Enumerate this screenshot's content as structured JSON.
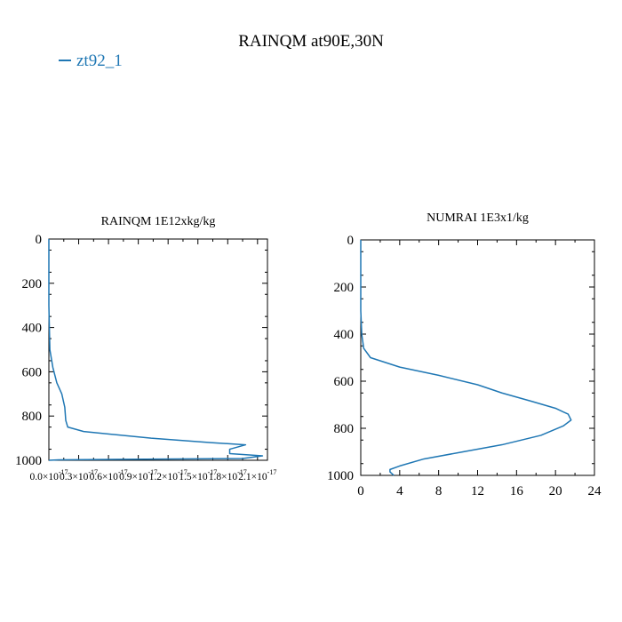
{
  "page": {
    "title": "RAINQM at90E,30N"
  },
  "legend": {
    "entries": [
      {
        "label": "zt92_1",
        "color": "#1f77b4"
      }
    ]
  },
  "chart_data": [
    {
      "type": "line",
      "title": "RAINQM  1E12xkg/kg",
      "xlabel": "",
      "ylabel": "",
      "y_inverted": true,
      "xlim": [
        0,
        2.2e-17
      ],
      "ylim": [
        1000,
        0
      ],
      "xticks": [
        0,
        3e-18,
        6e-18,
        9e-18,
        1.2e-17,
        1.5e-17,
        1.8e-17,
        2.1e-17
      ],
      "xtick_labels": [
        "0.0×10^-17",
        "0.3×10^-17",
        "0.6×10^-17",
        "0.9×10^-17",
        "1.2×10^-17",
        "1.5×10^-17",
        "1.8×10^-17",
        "2.1×10^-17"
      ],
      "yticks": [
        0,
        200,
        400,
        600,
        800,
        1000
      ],
      "ytick_labels": [
        "0",
        "200",
        "400",
        "600",
        "800",
        "1000"
      ],
      "series": [
        {
          "name": "zt92_1",
          "color": "#1f77b4",
          "x": [
            0,
            0,
            1e-19,
            4e-19,
            8e-19,
            1.3e-18,
            1.6e-18,
            1.7e-18,
            1.9e-18,
            3.5e-18,
            1.03e-17,
            1.63e-17,
            1.98e-17,
            1.82e-17,
            1.82e-17,
            2.15e-17,
            1.95e-17,
            1e-18,
            0
          ],
          "y": [
            0,
            300,
            500,
            580,
            650,
            700,
            760,
            820,
            850,
            870,
            900,
            920,
            930,
            950,
            970,
            980,
            992,
            998,
            1000
          ]
        }
      ]
    },
    {
      "type": "line",
      "title": "NUMRAI  1E3x1/kg",
      "xlabel": "",
      "ylabel": "",
      "y_inverted": true,
      "xlim": [
        0,
        24
      ],
      "ylim": [
        1000,
        0
      ],
      "xticks": [
        0,
        4,
        8,
        12,
        16,
        20,
        24
      ],
      "xtick_labels": [
        "0",
        "4",
        "8",
        "12",
        "16",
        "20",
        "24"
      ],
      "yticks": [
        0,
        200,
        400,
        600,
        800,
        1000
      ],
      "ytick_labels": [
        "0",
        "200",
        "400",
        "600",
        "800",
        "1000"
      ],
      "series": [
        {
          "name": "zt92_1",
          "color": "#1f77b4",
          "x": [
            0,
            0,
            0.1,
            0.3,
            1.0,
            4.0,
            8.0,
            12.0,
            14.5,
            17.5,
            20.0,
            21.3,
            21.6,
            20.8,
            18.5,
            14.5,
            10.5,
            6.5,
            4.0,
            3.0,
            3.0,
            3.4
          ],
          "y": [
            0,
            300,
            400,
            460,
            500,
            540,
            575,
            615,
            650,
            685,
            715,
            740,
            765,
            790,
            830,
            870,
            900,
            930,
            960,
            975,
            985,
            1000
          ]
        }
      ]
    }
  ]
}
